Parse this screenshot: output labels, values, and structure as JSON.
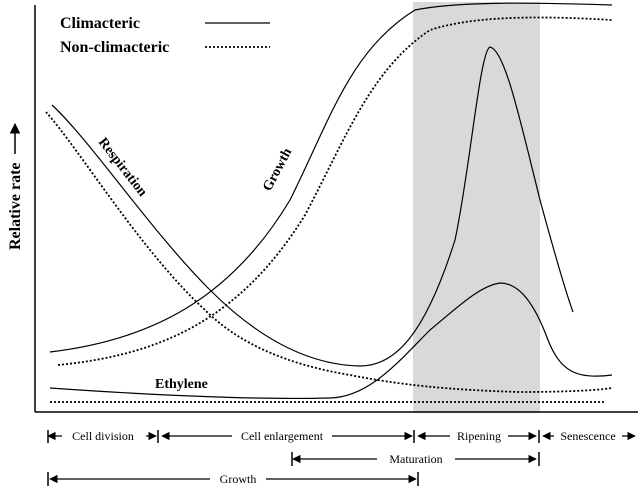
{
  "legend": {
    "climacteric": "Climacteric",
    "non_climacteric": "Non-climacteric"
  },
  "axis": {
    "y_label": "Relative rate"
  },
  "curve_labels": {
    "respiration": "Respiration",
    "growth": "Growth",
    "ethylene": "Ethylene"
  },
  "stages": {
    "cell_division": "Cell division",
    "cell_enlargement": "Cell enlargement",
    "ripening": "Ripening",
    "senescence": "Senescence",
    "maturation": "Maturation",
    "growth": "Growth"
  },
  "colors": {
    "line": "#000000",
    "shade": "#d9d9d9"
  }
}
